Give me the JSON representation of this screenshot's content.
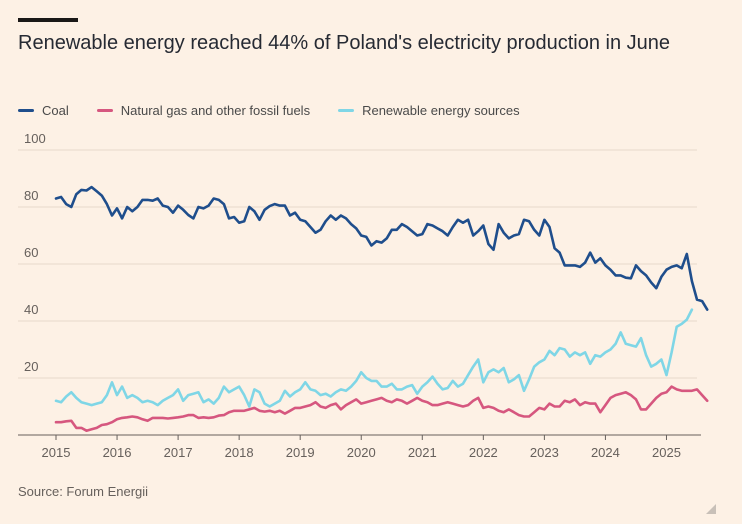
{
  "chart_data": {
    "type": "line",
    "title": "Renewable energy reached 44% of Poland's electricity production in June",
    "xlabel": "",
    "ylabel": "",
    "ylim": [
      0,
      100
    ],
    "yticks": [
      20,
      40,
      60,
      80,
      100
    ],
    "xlim": [
      2015.0,
      2025.5
    ],
    "xticks": [
      "2015",
      "2016",
      "2017",
      "2018",
      "2019",
      "2020",
      "2021",
      "2022",
      "2023",
      "2024",
      "2025"
    ],
    "start": "2015-01",
    "frequency": "monthly",
    "source": "Source: Forum Energii",
    "series": [
      {
        "name": "Coal",
        "color": "#1f4e8c",
        "values": [
          83,
          83.5,
          81,
          80,
          84.5,
          86,
          85.8,
          87,
          85.5,
          84,
          81,
          77,
          79.5,
          76,
          80,
          78.5,
          80,
          82.5,
          82.5,
          82.2,
          83,
          80.5,
          80,
          78,
          80.5,
          79,
          77.2,
          76,
          80,
          79.5,
          80.5,
          83,
          82.5,
          81,
          76,
          76.5,
          74.5,
          75,
          80,
          78.5,
          75.5,
          79,
          80.3,
          81,
          80.5,
          80.5,
          77,
          78,
          75.5,
          75,
          73,
          71,
          72,
          75,
          77,
          75.5,
          77,
          76,
          74,
          72.5,
          70,
          69.5,
          66.5,
          68,
          67.5,
          69,
          72,
          72,
          74,
          73,
          71.5,
          70,
          70.5,
          74,
          73.5,
          72.5,
          71.5,
          70,
          73,
          75.5,
          74.5,
          75.5,
          70,
          71.5,
          73.5,
          67,
          65,
          74,
          71,
          69,
          70,
          70.5,
          75.5,
          75,
          72,
          70,
          75.5,
          73,
          65.5,
          64,
          59.5,
          59.5,
          59.5,
          59,
          60.5,
          64,
          60.5,
          62,
          59.5,
          58,
          56,
          56,
          55.2,
          55,
          59.5,
          57.5,
          56,
          53.5,
          51.5,
          55.5,
          58,
          59,
          59.5,
          58.5,
          63.5,
          54,
          47.5,
          47,
          44
        ]
      },
      {
        "name": "Natural gas and other fossil fuels",
        "color": "#d6577f",
        "values": [
          4.5,
          4.5,
          4.8,
          5,
          2.5,
          2.5,
          1.5,
          2,
          2.5,
          3.5,
          3.8,
          4.5,
          5.5,
          6,
          6.2,
          6.5,
          6.2,
          5.5,
          5,
          6,
          6,
          6,
          5.8,
          6,
          6.2,
          6.5,
          7,
          7,
          6,
          6.2,
          6,
          6.2,
          6.8,
          7,
          8,
          8.5,
          8.5,
          8.5,
          9,
          9.5,
          8.5,
          8.2,
          8.5,
          8,
          8.5,
          7.5,
          8.5,
          9.5,
          9.5,
          10,
          10.5,
          11.5,
          10,
          9.5,
          10.5,
          11,
          9,
          10.5,
          11.5,
          12.5,
          11,
          11.5,
          12,
          12.5,
          13,
          12,
          11.5,
          12.5,
          12,
          11,
          12,
          13,
          12,
          11.5,
          10.5,
          10.5,
          11,
          11.5,
          11,
          10.5,
          10,
          10.5,
          12,
          13,
          9.5,
          10,
          9.5,
          8.5,
          8,
          9,
          8,
          7,
          6.5,
          6.5,
          8,
          9.5,
          9,
          11,
          10,
          10,
          12,
          11.5,
          12.5,
          10.5,
          11.5,
          11,
          11,
          8,
          10.5,
          13,
          14,
          14.5,
          15,
          14,
          12.5,
          9,
          9,
          11,
          13,
          14.5,
          15,
          17,
          16,
          15.5,
          15.5,
          15.5,
          16,
          14,
          12
        ]
      },
      {
        "name": "Renewable energy sources",
        "color": "#7fd6e6",
        "values": [
          12,
          11.5,
          13.5,
          15,
          13,
          11.5,
          11,
          10.5,
          11,
          11.5,
          14,
          18.5,
          14,
          17,
          13,
          14,
          13,
          11.5,
          12,
          11.5,
          10.5,
          12,
          13,
          14,
          16,
          12,
          14,
          14.5,
          15,
          11.5,
          12.5,
          11,
          13,
          17,
          15,
          16,
          17,
          14,
          10,
          16,
          15,
          11,
          10,
          11,
          12,
          15.5,
          13.5,
          15,
          16,
          18.5,
          16,
          15.5,
          14,
          14.5,
          13.5,
          15,
          16,
          15.5,
          17,
          19,
          22,
          20,
          19,
          19,
          17,
          17,
          18,
          16,
          16,
          17,
          17.5,
          14.5,
          17,
          18.5,
          20.5,
          18,
          16,
          16.5,
          19,
          17,
          18,
          21,
          24,
          26.5,
          18.5,
          22,
          23,
          22,
          23.5,
          18.5,
          19.5,
          21,
          15.5,
          19.5,
          24,
          25.5,
          26.5,
          29.5,
          28,
          30.5,
          30,
          27.5,
          29,
          28,
          29,
          25,
          28,
          27.5,
          29,
          30,
          32,
          36,
          32,
          31.5,
          31,
          34,
          28,
          24,
          25,
          26.5,
          21,
          29,
          38,
          39,
          40.5,
          44
        ]
      }
    ]
  }
}
